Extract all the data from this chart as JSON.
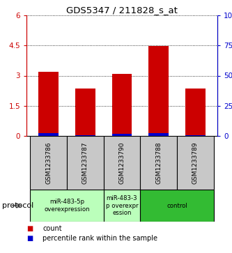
{
  "title": "GDS5347 / 211828_s_at",
  "samples": [
    "GSM1233786",
    "GSM1233787",
    "GSM1233790",
    "GSM1233788",
    "GSM1233789"
  ],
  "red_values": [
    3.2,
    2.35,
    3.07,
    4.47,
    2.35
  ],
  "blue_values": [
    0.14,
    0.04,
    0.09,
    0.14,
    0.05
  ],
  "ylim_left": [
    0,
    6
  ],
  "ylim_right": [
    0,
    100
  ],
  "yticks_left": [
    0,
    1.5,
    3.0,
    4.5,
    6
  ],
  "yticks_right": [
    0,
    25,
    50,
    75,
    100
  ],
  "ytick_labels_left": [
    "0",
    "1.5",
    "3",
    "4.5",
    "6"
  ],
  "ytick_labels_right": [
    "0",
    "25",
    "50",
    "75",
    "100%"
  ],
  "red_color": "#cc0000",
  "blue_color": "#0000cc",
  "bar_width": 0.55,
  "protocol_groups": [
    {
      "label": "miR-483-5p\noverexpression",
      "start": 0,
      "end": 1,
      "color": "#ccffcc"
    },
    {
      "label": "miR-483-3\np overexpr\nession",
      "start": 2,
      "end": 2,
      "color": "#ccffcc"
    },
    {
      "label": "control",
      "start": 3,
      "end": 4,
      "color": "#44cc44"
    }
  ],
  "protocol_text": "protocol",
  "legend_count": "count",
  "legend_percentile": "percentile rank within the sample",
  "sample_box_color": "#c8c8c8",
  "left_axis_color": "#cc0000",
  "right_axis_color": "#0000cc",
  "light_green": "#bbffbb",
  "dark_green": "#33bb33"
}
